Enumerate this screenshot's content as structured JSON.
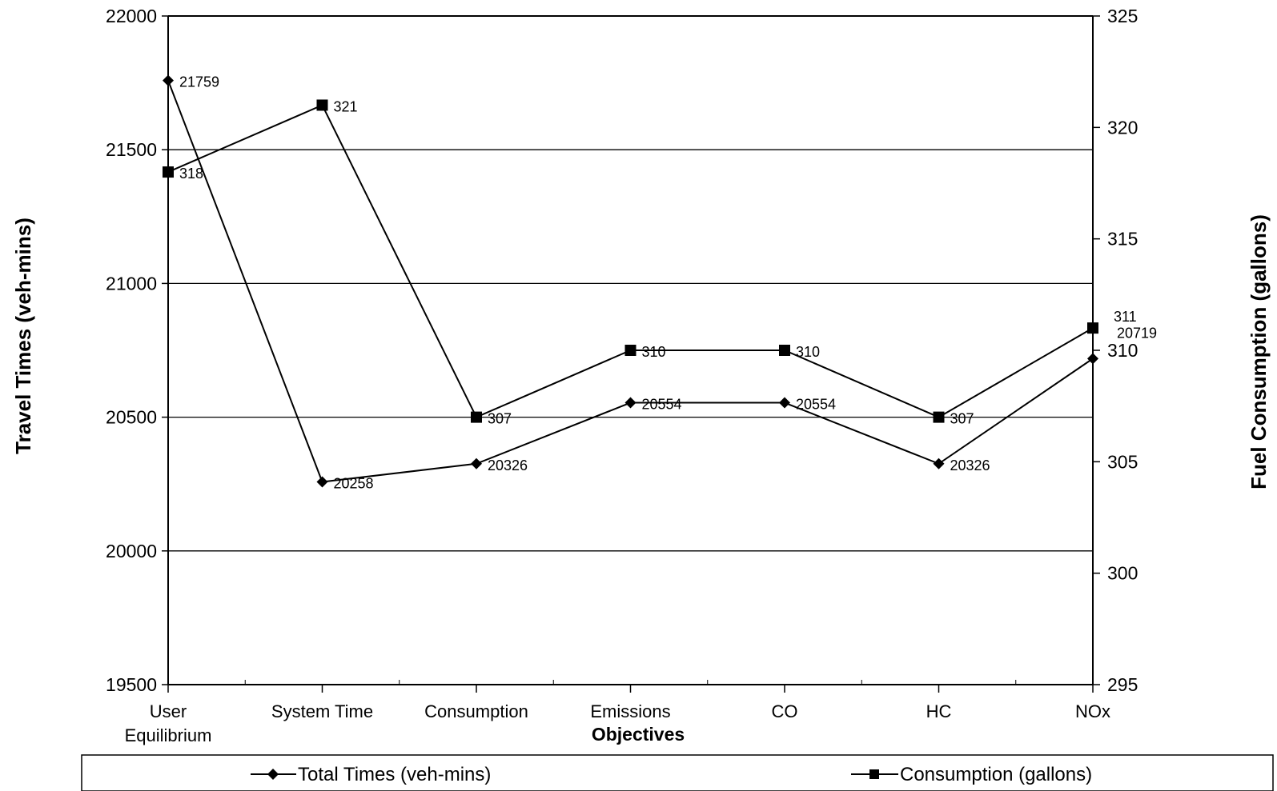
{
  "chart_data": {
    "type": "line",
    "title": "",
    "xlabel": "Objectives",
    "ylabel": "Travel Times (veh-mins)",
    "y2label": "Fuel Consumption (gallons)",
    "categories": [
      [
        "User",
        "Equilibrium"
      ],
      [
        "System Time"
      ],
      [
        "Consumption"
      ],
      [
        "Emissions"
      ],
      [
        "CO"
      ],
      [
        "HC"
      ],
      [
        "NOx"
      ]
    ],
    "ylim": [
      19500,
      22000
    ],
    "yticks": [
      "19500",
      "20000",
      "20500",
      "21000",
      "21500",
      "22000"
    ],
    "y2lim": [
      295,
      325
    ],
    "y2ticks": [
      "295",
      "300",
      "305",
      "310",
      "315",
      "320",
      "325"
    ],
    "grid": true,
    "legend_position": "bottom",
    "series": [
      {
        "name": "Total Times (veh-mins)",
        "axis": "left",
        "marker": "diamond",
        "values": [
          21759,
          20258,
          20326,
          20554,
          20554,
          20326,
          20719
        ],
        "labels": [
          "21759",
          "20258",
          "20326",
          "20554",
          "20554",
          "20326",
          "20719"
        ]
      },
      {
        "name": "Consumption (gallons)",
        "axis": "right",
        "marker": "square",
        "values": [
          318,
          321,
          307,
          310,
          310,
          307,
          311
        ],
        "labels": [
          "318",
          "321",
          "307",
          "310",
          "310",
          "307",
          "311"
        ]
      }
    ]
  }
}
